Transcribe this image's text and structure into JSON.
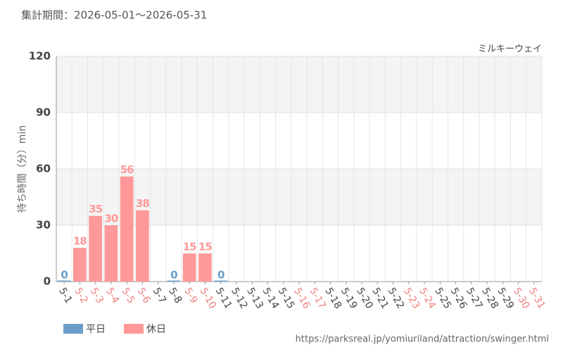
{
  "chart_data": {
    "type": "bar",
    "title": "集計期間：2026-05-01～2026-05-31",
    "subtitle": "ミルキーウェイ",
    "y_label": "待ち時間（分）min",
    "source": "https://parksreal.jp/yomiuriland/attraction/swinger.html",
    "categories": [
      "5-1",
      "5-2",
      "5-3",
      "5-4",
      "5-5",
      "5-6",
      "5-7",
      "5-8",
      "5-9",
      "5-10",
      "5-11",
      "5-12",
      "5-13",
      "5-14",
      "5-15",
      "5-16",
      "5-17",
      "5-18",
      "5-19",
      "5-20",
      "5-21",
      "5-22",
      "5-23",
      "5-24",
      "5-25",
      "5-26",
      "5-27",
      "5-28",
      "5-29",
      "5-30",
      "5-31"
    ],
    "category_colors": [
      "#444444",
      "#f08080",
      "#f08080",
      "#f08080",
      "#f08080",
      "#f08080",
      "#444444",
      "#444444",
      "#f08080",
      "#f08080",
      "#444444",
      "#444444",
      "#444444",
      "#444444",
      "#444444",
      "#f08080",
      "#f08080",
      "#444444",
      "#444444",
      "#444444",
      "#444444",
      "#444444",
      "#f08080",
      "#f08080",
      "#444444",
      "#444444",
      "#444444",
      "#444444",
      "#444444",
      "#f08080",
      "#f08080"
    ],
    "series": [
      {
        "name": "平日",
        "color": "#6a9ec9",
        "values": [
          0,
          null,
          null,
          null,
          null,
          null,
          null,
          0,
          null,
          null,
          0,
          null,
          null,
          null,
          null,
          null,
          null,
          null,
          null,
          null,
          null,
          null,
          null,
          null,
          null,
          null,
          null,
          null,
          null,
          null,
          null
        ]
      },
      {
        "name": "休日",
        "color": "#ff9999",
        "values": [
          null,
          18,
          35,
          30,
          56,
          38,
          null,
          null,
          15,
          15,
          null,
          null,
          null,
          null,
          null,
          null,
          null,
          null,
          null,
          null,
          null,
          null,
          null,
          null,
          null,
          null,
          null,
          null,
          null,
          null,
          null
        ]
      }
    ],
    "ylim": [
      0,
      120
    ],
    "yticks": [
      0,
      30,
      60,
      90,
      120
    ],
    "grid": true,
    "alternate_bands": true,
    "legend": "bottom-left"
  }
}
